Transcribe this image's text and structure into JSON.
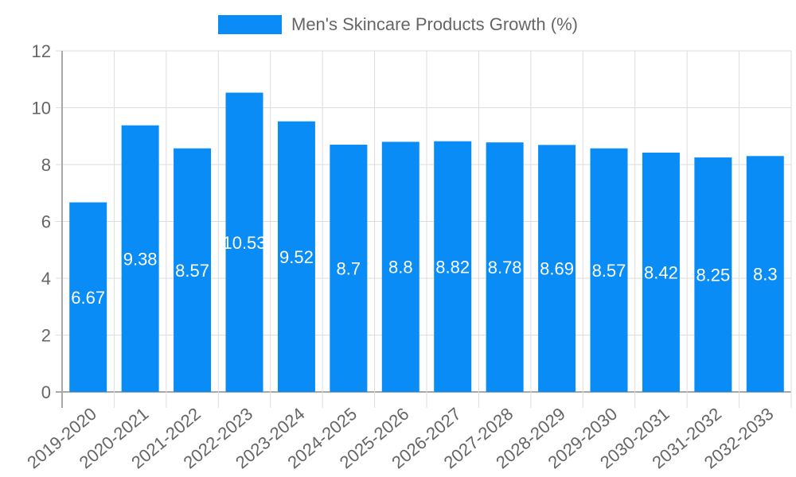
{
  "legend": {
    "label": "Men's Skincare Products Growth (%)",
    "color": "#0a8cf7"
  },
  "chart_data": {
    "type": "bar",
    "title": "",
    "xlabel": "",
    "ylabel": "",
    "ylim": [
      0,
      12
    ],
    "yticks": [
      0,
      2,
      4,
      6,
      8,
      10,
      12
    ],
    "grid": true,
    "legend_position": "top",
    "categories": [
      "2019-2020",
      "2020-2021",
      "2021-2022",
      "2022-2023",
      "2023-2024",
      "2024-2025",
      "2025-2026",
      "2026-2027",
      "2027-2028",
      "2028-2029",
      "2029-2030",
      "2030-2031",
      "2031-2032",
      "2032-2033"
    ],
    "series": [
      {
        "name": "Men's Skincare Products Growth (%)",
        "color": "#0a8cf7",
        "values": [
          6.67,
          9.38,
          8.57,
          10.53,
          9.52,
          8.7,
          8.8,
          8.82,
          8.78,
          8.69,
          8.57,
          8.42,
          8.25,
          8.3
        ]
      }
    ],
    "data_labels": true
  }
}
